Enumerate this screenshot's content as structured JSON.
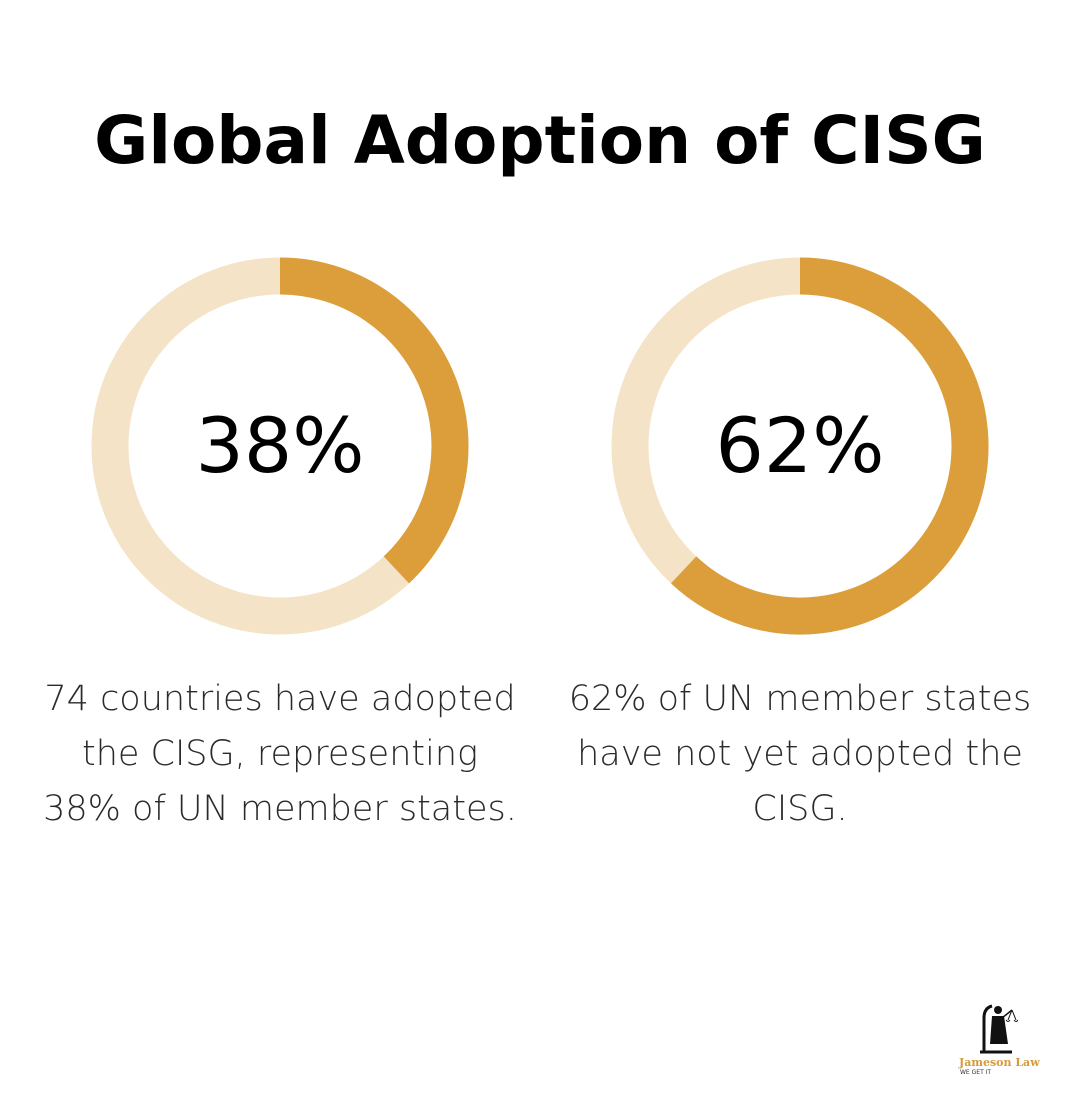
{
  "title": "Global Adoption of CISG",
  "colors": {
    "accent": "#DB9E3A",
    "track": "#F4E3C6",
    "text": "#000000"
  },
  "chart_data": [
    {
      "type": "pie",
      "variant": "donut",
      "value_percent": 38,
      "label": "38%",
      "caption": "74 countries have adopted the CISG, representing 38% of UN member states."
    },
    {
      "type": "pie",
      "variant": "donut",
      "value_percent": 62,
      "label": "62%",
      "caption": "62% of UN member states have not yet adopted the CISG."
    }
  ],
  "logo": {
    "name": "Jameson Law",
    "tagline": "WE GET IT"
  }
}
